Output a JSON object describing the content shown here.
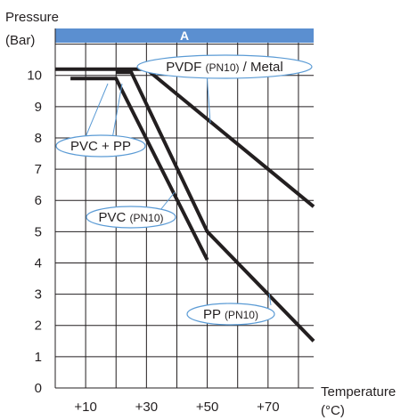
{
  "chart_data": {
    "type": "line",
    "ylabel_line1": "Pressure",
    "ylabel_line2": "(Bar)",
    "xlabel_line1": "Temperature",
    "xlabel_line2": "(°C)",
    "band_label": "A",
    "band_color": "#5b8fd0",
    "xlim": [
      0,
      85
    ],
    "ylim": [
      0,
      11.5
    ],
    "x_ticks": [
      {
        "value": 10,
        "label": "+10"
      },
      {
        "value": 30,
        "label": "+30"
      },
      {
        "value": 50,
        "label": "+50"
      },
      {
        "value": 70,
        "label": "+70"
      }
    ],
    "y_ticks": [
      0,
      1,
      2,
      3,
      4,
      5,
      6,
      7,
      8,
      9,
      10
    ],
    "y_grid_step": 1,
    "x_grid_step": 10,
    "series": [
      {
        "key": "pvdf",
        "points": [
          [
            0,
            10.2
          ],
          [
            30,
            10.2
          ],
          [
            85,
            5.8
          ]
        ]
      },
      {
        "key": "pvc",
        "points": [
          [
            5,
            9.9
          ],
          [
            20,
            9.9
          ],
          [
            50,
            4.1
          ]
        ]
      },
      {
        "key": "pp",
        "points": [
          [
            20,
            10.1
          ],
          [
            25,
            10.1
          ],
          [
            50,
            5.0
          ],
          [
            85,
            1.5
          ]
        ]
      }
    ],
    "annotations": [
      {
        "key": "pvdf",
        "main": "PVDF ",
        "small": "(PN10)",
        "tail": " / Metal"
      },
      {
        "key": "pvcpp",
        "main": "PVC + PP",
        "small": "",
        "tail": ""
      },
      {
        "key": "pvc",
        "main": "PVC ",
        "small": "(PN10)",
        "tail": ""
      },
      {
        "key": "pp",
        "main": "PP ",
        "small": "(PN10)",
        "tail": ""
      }
    ]
  }
}
